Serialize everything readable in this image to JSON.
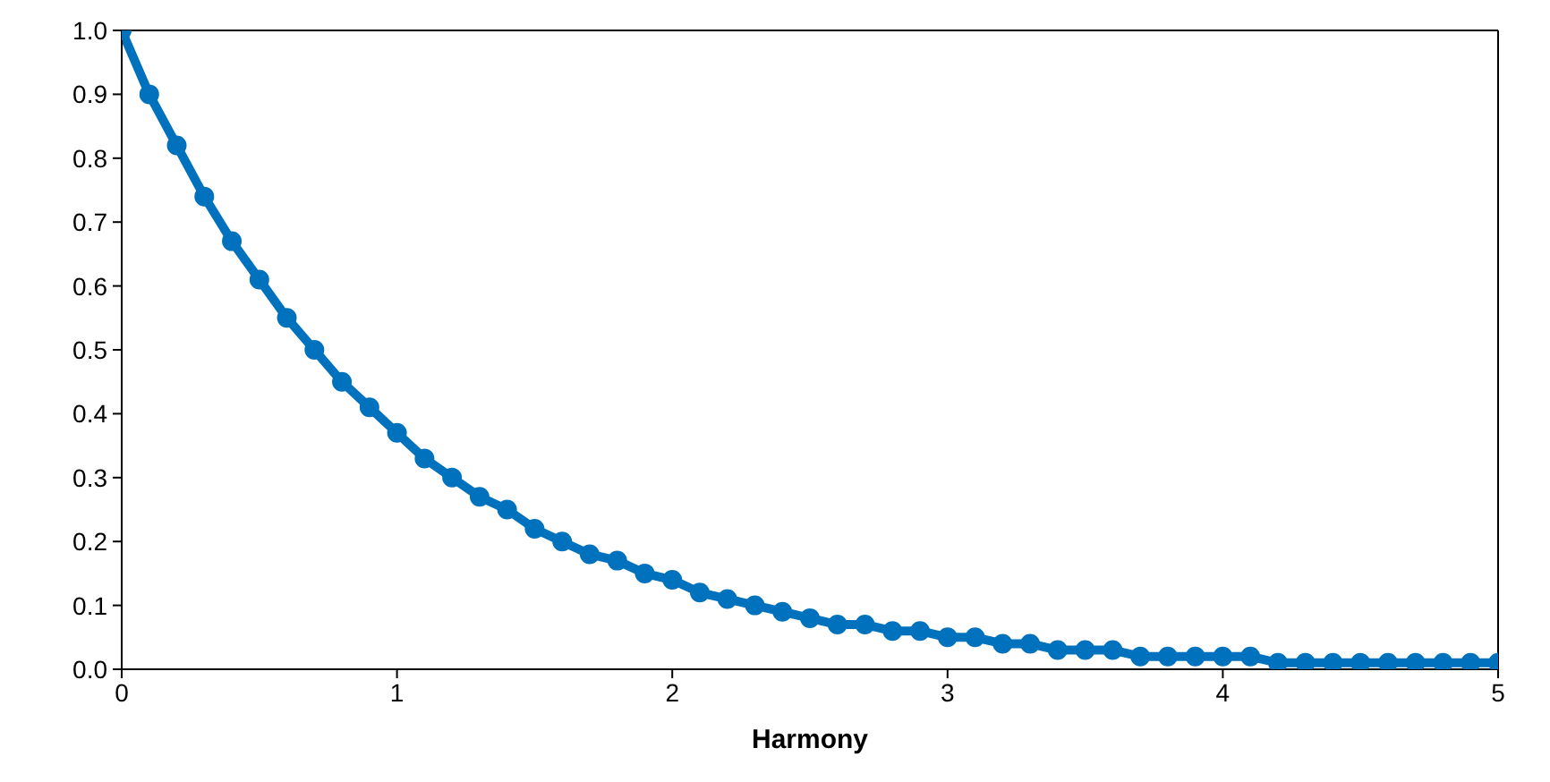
{
  "chart_data": {
    "type": "line",
    "xlabel": "Harmony",
    "marker": "circle",
    "line_style": "solid",
    "grid": false,
    "x": [
      0,
      0.1,
      0.2,
      0.3,
      0.4,
      0.5,
      0.6,
      0.7,
      0.8,
      0.9,
      1.0,
      1.1,
      1.2,
      1.3,
      1.4,
      1.5,
      1.6,
      1.7,
      1.8,
      1.9,
      2.0,
      2.1,
      2.2,
      2.3,
      2.4,
      2.5,
      2.6,
      2.7,
      2.8,
      2.9,
      3.0,
      3.1,
      3.2,
      3.3,
      3.4,
      3.5,
      3.6,
      3.7,
      3.8,
      3.9,
      4.0,
      4.1,
      4.2,
      4.3,
      4.4,
      4.5,
      4.6,
      4.7,
      4.8,
      4.9,
      5.0
    ],
    "series": [
      {
        "color": "#0072bd",
        "values": [
          1.0,
          0.9,
          0.82,
          0.74,
          0.67,
          0.61,
          0.55,
          0.5,
          0.45,
          0.41,
          0.37,
          0.33,
          0.3,
          0.27,
          0.25,
          0.22,
          0.2,
          0.18,
          0.17,
          0.15,
          0.14,
          0.12,
          0.11,
          0.1,
          0.09,
          0.08,
          0.07,
          0.07,
          0.06,
          0.06,
          0.05,
          0.05,
          0.04,
          0.04,
          0.03,
          0.03,
          0.03,
          0.02,
          0.02,
          0.02,
          0.02,
          0.02,
          0.01,
          0.01,
          0.01,
          0.01,
          0.01,
          0.01,
          0.01,
          0.01,
          0.01
        ]
      }
    ],
    "xlim": [
      0,
      5
    ],
    "xticks": [
      0,
      1,
      2,
      3,
      4,
      5
    ],
    "ylim": [
      0,
      1
    ],
    "yticks": [
      {
        "value": 0,
        "label": "0.0"
      },
      0.1,
      0.2,
      0.3,
      0.4,
      0.5,
      0.6,
      0.7,
      0.8,
      0.9,
      {
        "value": 1,
        "label": "1.0"
      }
    ]
  }
}
